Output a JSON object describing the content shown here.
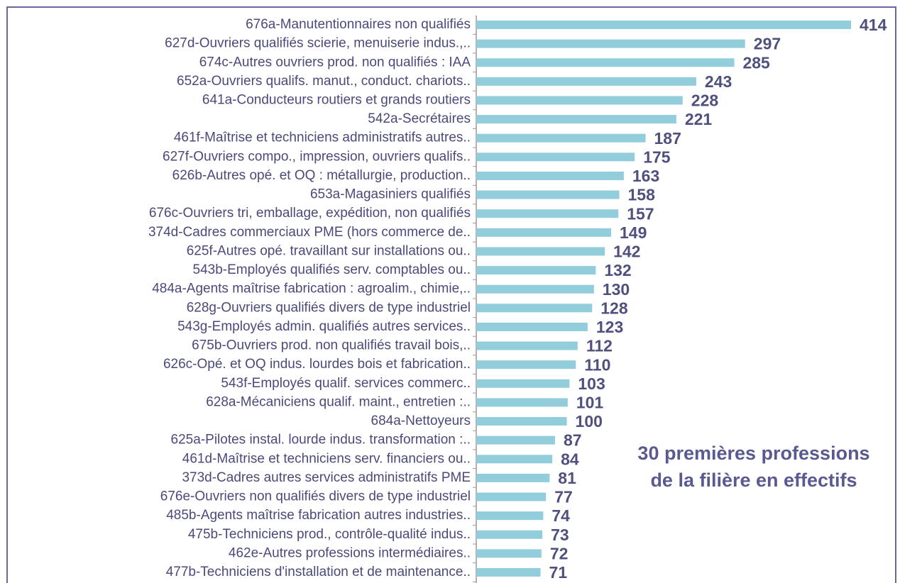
{
  "chart_data": {
    "type": "barh",
    "annotation": [
      "30 premières professions",
      "de la filière en effectifs"
    ],
    "color": "#92cddc",
    "categories": [
      "676a-Manutentionnaires non qualifiés",
      "627d-Ouvriers qualifiés scierie, menuiserie indus.,..",
      "674c-Autres ouvriers prod. non qualifiés : IAA",
      "652a-Ouvriers qualifs. manut., conduct. chariots..",
      "641a-Conducteurs routiers et grands routiers",
      "542a-Secrétaires",
      "461f-Maîtrise et techniciens administratifs autres..",
      "627f-Ouvriers compo., impression, ouvriers qualifs..",
      "626b-Autres opé. et OQ : métallurgie, production..",
      "653a-Magasiniers qualifiés",
      "676c-Ouvriers tri, emballage, expédition, non qualifiés",
      "374d-Cadres commerciaux PME (hors commerce de..",
      "625f-Autres opé. travaillant sur installations ou..",
      "543b-Employés qualifiés serv. comptables ou..",
      "484a-Agents maîtrise fabrication : agroalim., chimie,..",
      "628g-Ouvriers qualifiés divers de type industriel",
      "543g-Employés admin. qualifiés autres services..",
      "675b-Ouvriers prod. non qualifiés travail bois,..",
      "626c-Opé. et OQ indus. lourdes bois et fabrication..",
      "543f-Employés qualif. services commerc..",
      "628a-Mécaniciens qualif. maint., entretien :..",
      "684a-Nettoyeurs",
      "625a-Pilotes instal. lourde indus. transformation :..",
      "461d-Maîtrise et techniciens serv. financiers ou..",
      "373d-Cadres autres services administratifs PME",
      "676e-Ouvriers non qualifiés divers de type industriel",
      "485b-Agents maîtrise  fabrication autres industries..",
      "475b-Techniciens prod., contrôle-qualité indus..",
      "462e-Autres professions intermédiaires..",
      "477b-Techniciens d'installation et de maintenance.."
    ],
    "values": [
      414,
      297,
      285,
      243,
      228,
      221,
      187,
      175,
      163,
      158,
      157,
      149,
      142,
      132,
      130,
      128,
      123,
      112,
      110,
      103,
      101,
      100,
      87,
      84,
      81,
      77,
      74,
      73,
      72,
      71
    ]
  }
}
